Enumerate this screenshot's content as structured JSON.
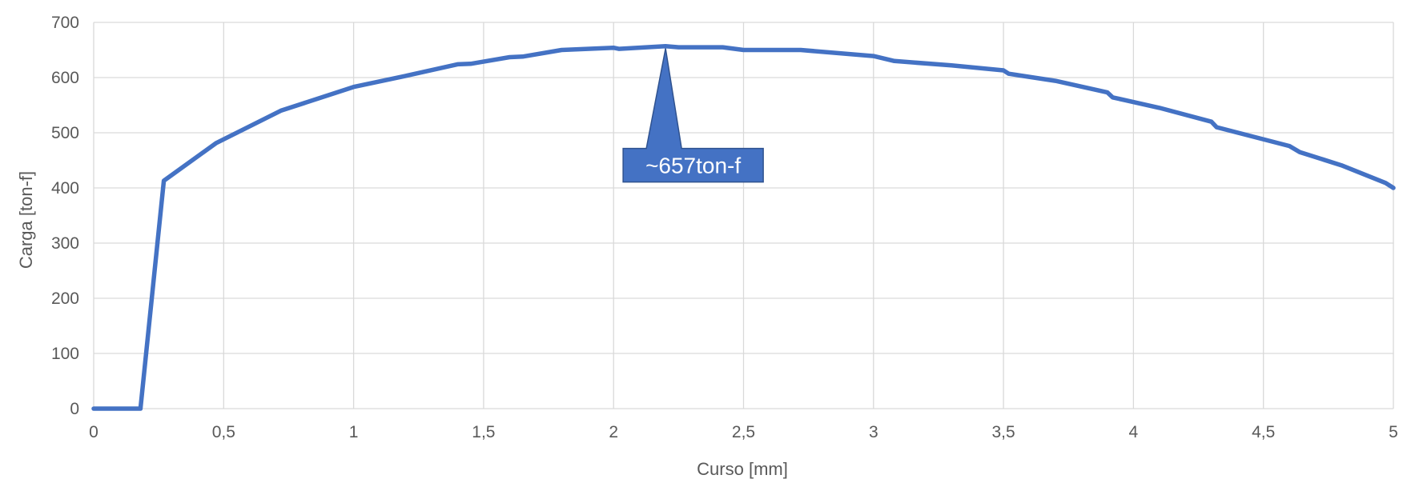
{
  "chart_data": {
    "type": "line",
    "title": "",
    "xlabel": "Curso [mm]",
    "ylabel": "Carga [ton-f]",
    "xlim": [
      0,
      5
    ],
    "ylim": [
      0,
      700
    ],
    "x_ticks": [
      "0",
      "0,5",
      "1",
      "1,5",
      "2",
      "2,5",
      "3",
      "3,5",
      "4",
      "4,5",
      "5"
    ],
    "y_ticks": [
      "0",
      "100",
      "200",
      "300",
      "400",
      "500",
      "600",
      "700"
    ],
    "x_tick_values": [
      0,
      0.5,
      1,
      1.5,
      2,
      2.5,
      3,
      3.5,
      4,
      4.5,
      5
    ],
    "y_tick_values": [
      0,
      100,
      200,
      300,
      400,
      500,
      600,
      700
    ],
    "grid": true,
    "series": [
      {
        "color": "#4472c4",
        "x": [
          0,
          0.18,
          0.27,
          0.47,
          0.72,
          1.0,
          1.2,
          1.4,
          1.45,
          1.6,
          1.65,
          1.8,
          2.0,
          2.02,
          2.2,
          2.25,
          2.42,
          2.5,
          2.72,
          3.0,
          3.08,
          3.3,
          3.5,
          3.52,
          3.7,
          3.9,
          3.92,
          4.1,
          4.3,
          4.32,
          4.6,
          4.64,
          4.8,
          4.97,
          5.0
        ],
        "y": [
          0,
          0,
          413,
          481,
          540,
          583,
          603,
          624,
          625,
          637,
          638,
          650,
          654,
          652,
          657,
          655,
          655,
          650,
          650,
          639,
          630,
          622,
          613,
          607,
          594,
          573,
          564,
          545,
          520,
          510,
          476,
          465,
          441,
          409,
          400
        ]
      }
    ],
    "annotations": [
      {
        "text": "~657ton-f",
        "x": 2.2,
        "y": 657
      }
    ]
  }
}
